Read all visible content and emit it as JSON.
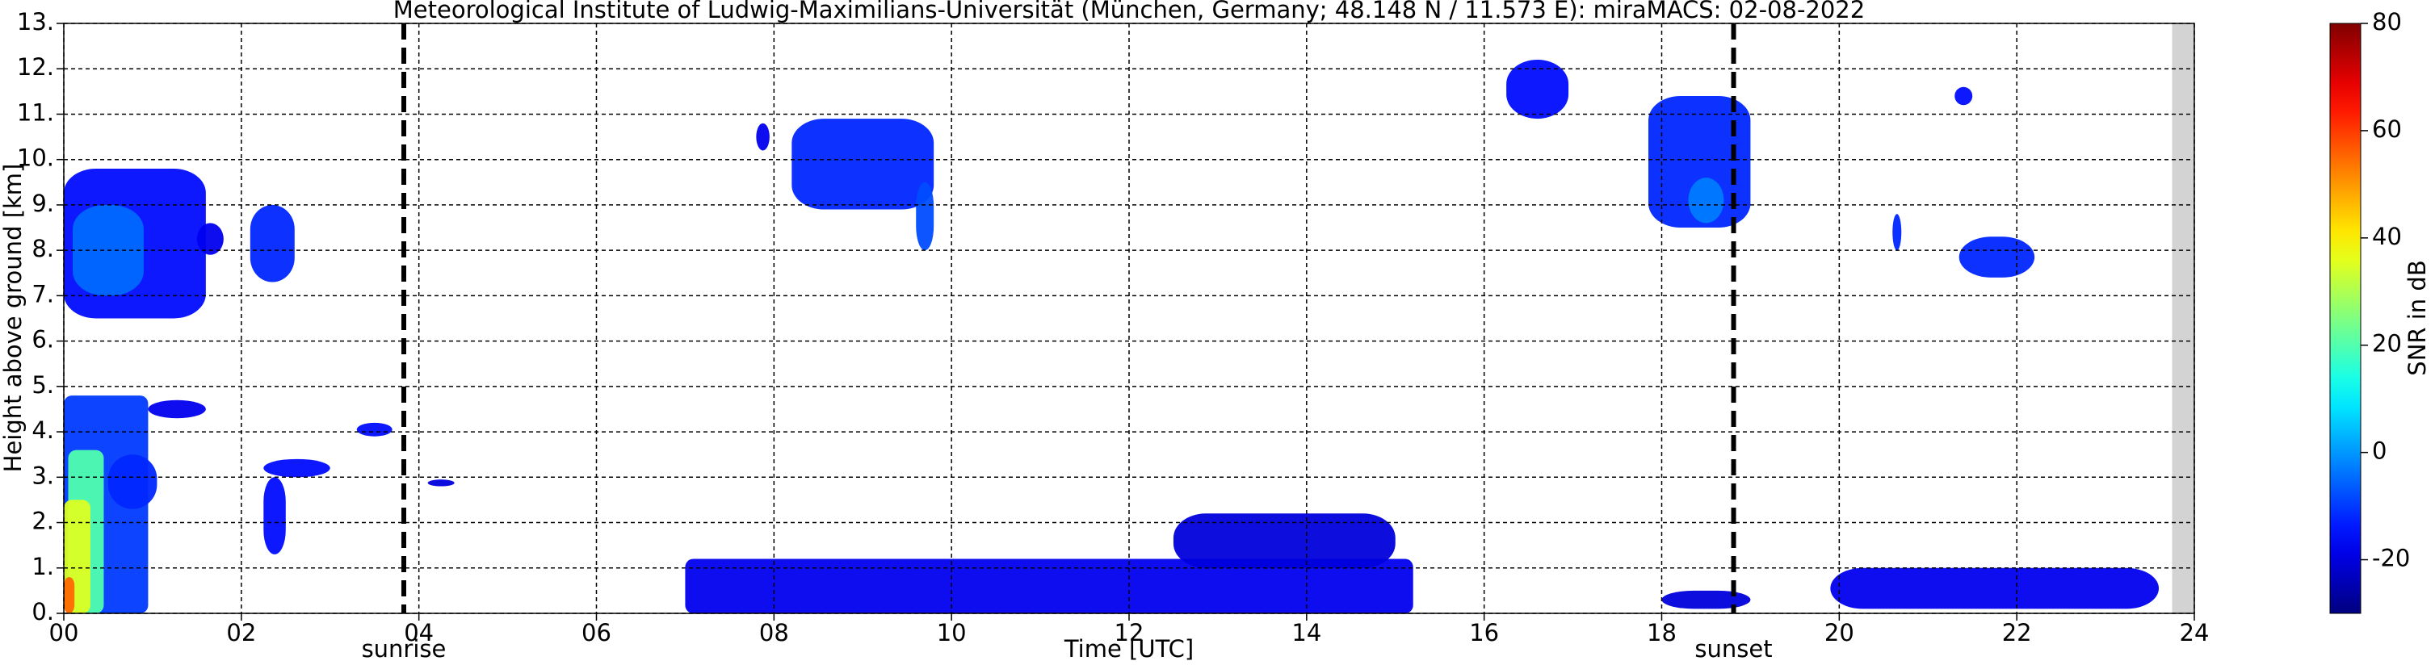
{
  "chart_data": {
    "type": "radar-time-height",
    "title": "Meteorological Institute of Ludwig-Maximilians-Universität (München, Germany; 48.148 N / 11.573 E):    miraMACS: 02-08-2022",
    "x_label": "Time [UTC]",
    "y_label": "Height above ground [km]",
    "colorbar_label": "SNR in dB",
    "xlim": [
      0,
      24
    ],
    "xticks": [
      {
        "value": 0,
        "label": "00"
      },
      {
        "value": 2,
        "label": "02"
      },
      {
        "value": 4,
        "label": "04"
      },
      {
        "value": 6,
        "label": "06"
      },
      {
        "value": 8,
        "label": "08"
      },
      {
        "value": 10,
        "label": "10"
      },
      {
        "value": 12,
        "label": "12"
      },
      {
        "value": 14,
        "label": "14"
      },
      {
        "value": 16,
        "label": "16"
      },
      {
        "value": 18,
        "label": "18"
      },
      {
        "value": 20,
        "label": "20"
      },
      {
        "value": 22,
        "label": "22"
      },
      24
    ],
    "ylim": [
      0,
      13
    ],
    "yticks": [
      {
        "value": 0,
        "label": "0."
      },
      {
        "value": 1,
        "label": "1."
      },
      {
        "value": 2,
        "label": "2."
      },
      {
        "value": 3,
        "label": "3."
      },
      {
        "value": 4,
        "label": "4."
      },
      {
        "value": 5,
        "label": "5."
      },
      {
        "value": 6,
        "label": "6."
      },
      {
        "value": 7,
        "label": "7."
      },
      {
        "value": 8,
        "label": "8."
      },
      {
        "value": 9,
        "label": "9."
      },
      {
        "value": 10,
        "label": "10."
      },
      {
        "value": 11,
        "label": "11."
      },
      {
        "value": 12,
        "label": "12."
      },
      {
        "value": 13,
        "label": "13."
      }
    ],
    "clim": [
      -30,
      80
    ],
    "cticks": [
      -20,
      0,
      20,
      40,
      60,
      80
    ],
    "colormap": "jet",
    "grid": true,
    "markers": [
      {
        "label": "sunrise",
        "x": 3.83
      },
      {
        "label": "sunset",
        "x": 18.81
      }
    ],
    "no_data": [
      23.75,
      24
    ],
    "echoes": [
      {
        "t0": 0,
        "t1": 0.95,
        "h0": 0,
        "h1": 4.8,
        "snr": -10
      },
      {
        "t0": 0.5,
        "t1": 1.05,
        "h0": 2.3,
        "h1": 3.5,
        "snr": -12
      },
      {
        "t0": 0.05,
        "t1": 0.45,
        "h0": 0,
        "h1": 3.6,
        "snr": 20
      },
      {
        "t0": 0,
        "t1": 0.3,
        "h0": 0,
        "h1": 2.5,
        "snr": 35
      },
      {
        "t0": 0,
        "t1": 0.12,
        "h0": 0,
        "h1": 0.8,
        "snr": 55
      },
      {
        "t0": 0,
        "t1": 1.6,
        "h0": 6.5,
        "h1": 9.8,
        "snr": -15
      },
      {
        "t0": 0.1,
        "t1": 0.9,
        "h0": 7.0,
        "h1": 9.0,
        "snr": -5
      },
      {
        "t0": 1.5,
        "t1": 1.8,
        "h0": 7.9,
        "h1": 8.6,
        "snr": -18
      },
      {
        "t0": 2.1,
        "t1": 2.6,
        "h0": 7.3,
        "h1": 9.0,
        "snr": -12
      },
      {
        "t0": 0.95,
        "t1": 1.6,
        "h0": 4.3,
        "h1": 4.7,
        "snr": -18
      },
      {
        "t0": 2.25,
        "t1": 3.0,
        "h0": 3.0,
        "h1": 3.4,
        "snr": -15
      },
      {
        "t0": 2.25,
        "t1": 2.5,
        "h0": 1.3,
        "h1": 3.0,
        "snr": -15
      },
      {
        "t0": 3.3,
        "t1": 3.7,
        "h0": 3.9,
        "h1": 4.2,
        "snr": -15
      },
      {
        "t0": 4.1,
        "t1": 4.4,
        "h0": 2.8,
        "h1": 2.95,
        "snr": -20
      },
      {
        "t0": 7.8,
        "t1": 7.95,
        "h0": 10.2,
        "h1": 10.8,
        "snr": -18
      },
      {
        "t0": 8.2,
        "t1": 9.8,
        "h0": 8.9,
        "h1": 10.9,
        "snr": -12
      },
      {
        "t0": 9.6,
        "t1": 9.8,
        "h0": 8.0,
        "h1": 9.5,
        "snr": -8
      },
      {
        "t0": 16.25,
        "t1": 16.95,
        "h0": 10.9,
        "h1": 12.2,
        "snr": -15
      },
      {
        "t0": 17.85,
        "t1": 19.0,
        "h0": 8.5,
        "h1": 11.4,
        "snr": -12
      },
      {
        "t0": 18.3,
        "t1": 18.7,
        "h0": 8.6,
        "h1": 9.6,
        "snr": -3
      },
      {
        "t0": 21.3,
        "t1": 21.5,
        "h0": 11.2,
        "h1": 11.6,
        "snr": -15
      },
      {
        "t0": 20.6,
        "t1": 20.7,
        "h0": 8.0,
        "h1": 8.8,
        "snr": -12
      },
      {
        "t0": 21.35,
        "t1": 22.2,
        "h0": 7.4,
        "h1": 8.3,
        "snr": -12
      },
      {
        "t0": 7.0,
        "t1": 15.2,
        "h0": 0,
        "h1": 1.2,
        "snr": -18
      },
      {
        "t0": 12.5,
        "t1": 15.0,
        "h0": 1.0,
        "h1": 2.2,
        "snr": -20
      },
      {
        "t0": 18.0,
        "t1": 19.0,
        "h0": 0.1,
        "h1": 0.5,
        "snr": -20
      },
      {
        "t0": 19.9,
        "t1": 23.6,
        "h0": 0.1,
        "h1": 1.0,
        "snr": -18
      }
    ]
  }
}
